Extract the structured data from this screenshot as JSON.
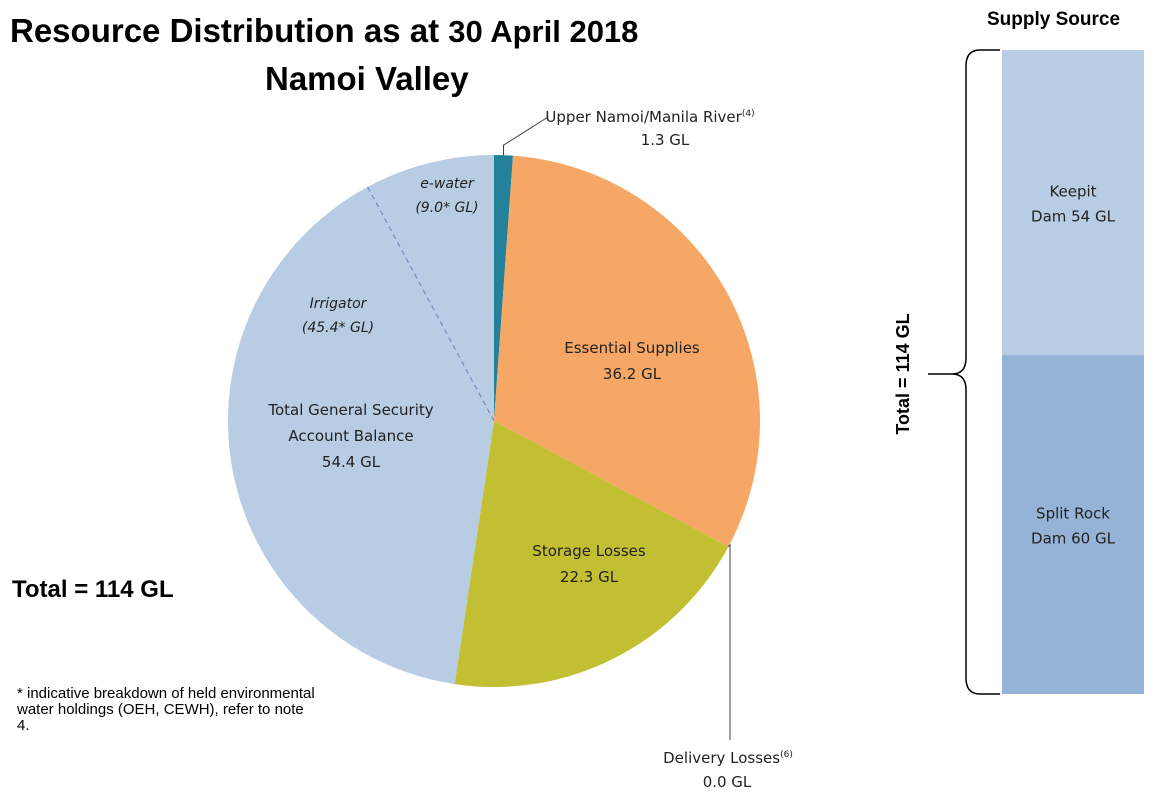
{
  "header": {
    "title_main": "Resource Distribution as at",
    "title_date": "30 April 2018",
    "subtitle": "Namoi Valley"
  },
  "total_label": "Total = 114 GL",
  "footnote": "* indicative breakdown of held environmental water holdings (OEH, CEWH), refer to note 4.",
  "supply": {
    "title": "Supply Source",
    "total_label": "Total = 114 GL"
  },
  "chart_data": [
    {
      "type": "pie",
      "unit": "GL",
      "slices": [
        {
          "label": "Upper Namoi/Manila River",
          "sup": "(4)",
          "value": 1.3,
          "value_label": "1.3 GL",
          "color": "#23829a"
        },
        {
          "label": "Essential Supplies",
          "value": 36.2,
          "value_label": "36.2 GL",
          "color": "#f6a765"
        },
        {
          "label": "Delivery Losses",
          "sup": "(6)",
          "value": 0.0,
          "value_label": "0.0 GL",
          "color": "#8ca44a"
        },
        {
          "label": "Storage Losses",
          "value": 22.3,
          "value_label": "22.3 GL",
          "color": "#c3bf33"
        },
        {
          "label": "Total General Security Account Balance",
          "label_lines": [
            "Total General Security",
            "Account Balance"
          ],
          "value": 54.4,
          "value_label": "54.4 GL",
          "color": "#b8cce4"
        }
      ],
      "sub_breakdown": [
        {
          "label": "Irrigator",
          "value": 45.4,
          "value_label": "(45.4* GL)"
        },
        {
          "label": "e-water",
          "value": 9.0,
          "value_label": "(9.0* GL)"
        }
      ]
    },
    {
      "type": "bar",
      "stacked": true,
      "unit": "GL",
      "segments": [
        {
          "label": "Keepit",
          "value": 54,
          "label_lines": [
            "Keepit",
            "Dam 54 GL"
          ],
          "color": "#b8cce4"
        },
        {
          "label": "Split Rock",
          "value": 60,
          "label_lines": [
            "Split Rock",
            "Dam 60 GL"
          ],
          "color": "#95b3d7"
        }
      ]
    }
  ]
}
